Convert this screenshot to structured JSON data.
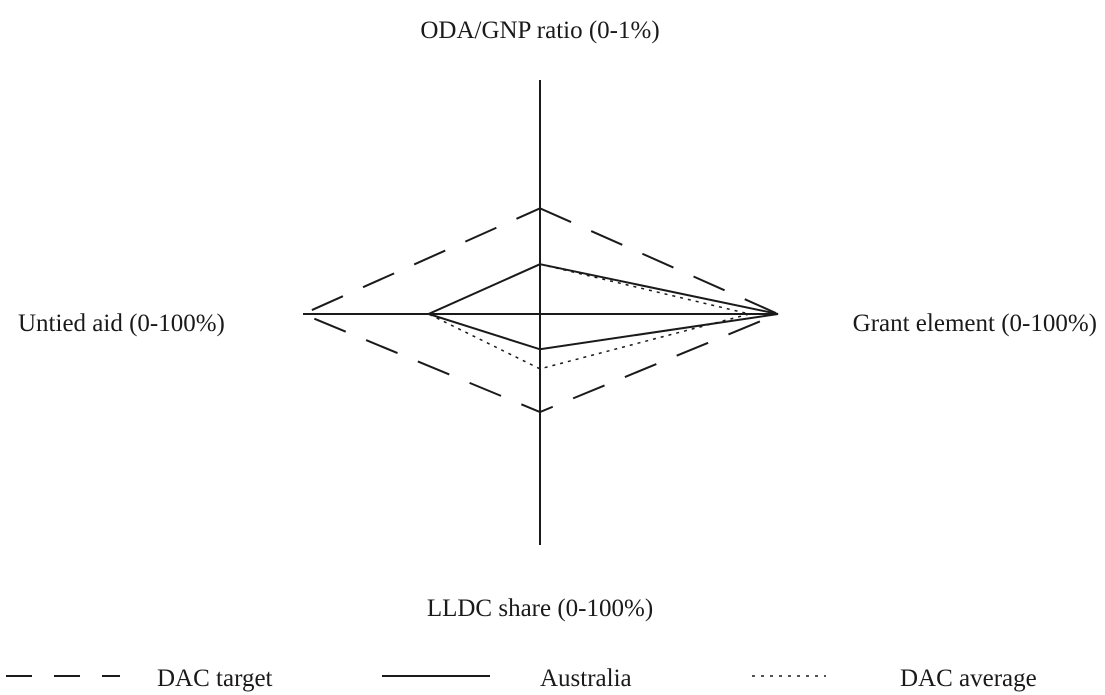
{
  "chart_data": {
    "type": "radar",
    "axes": [
      {
        "key": "top",
        "label": "ODA/GNP ratio (0-1%)"
      },
      {
        "key": "right",
        "label": "Grant element (0-100%)"
      },
      {
        "key": "bottom",
        "label": "LLDC share (0-100%)"
      },
      {
        "key": "left",
        "label": "Untied aid (0-100%)"
      }
    ],
    "series": [
      {
        "name": "DAC target",
        "style": "long-dash",
        "values": {
          "top": 0.7,
          "right": 100,
          "bottom": 50,
          "left": 100
        }
      },
      {
        "name": "Australia",
        "style": "solid",
        "values": {
          "top": 0.33,
          "right": 100,
          "bottom": 18,
          "left": 47
        }
      },
      {
        "name": "DAC average",
        "style": "dotted",
        "values": {
          "top": 0.33,
          "right": 88,
          "bottom": 28,
          "left": 47
        }
      }
    ],
    "legend": {
      "position": "bottom",
      "items": [
        "DAC target",
        "Australia",
        "DAC average"
      ]
    },
    "grid": false
  }
}
